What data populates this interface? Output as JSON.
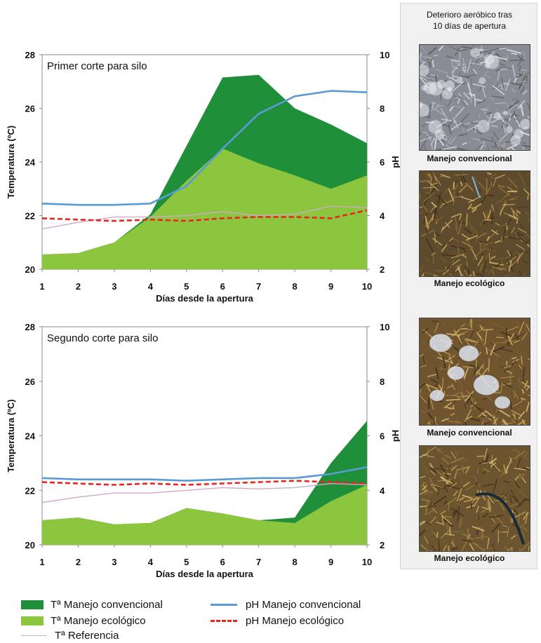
{
  "chart_data": [
    {
      "type": "area",
      "title": "Primer corte para silo",
      "xlabel": "Días desde la apertura",
      "ylabel": "Temperatura (ºC)",
      "y2label": "pH",
      "x": [
        1,
        2,
        3,
        4,
        5,
        6,
        7,
        8,
        9,
        10
      ],
      "xlim": [
        1,
        10
      ],
      "ylim": [
        20,
        28
      ],
      "y2lim": [
        2,
        10
      ],
      "yticks": [
        20,
        22,
        24,
        26,
        28
      ],
      "y2ticks": [
        2,
        4,
        6,
        8,
        10
      ],
      "grid": false,
      "series": [
        {
          "name": "Tª Manejo convencional",
          "axis": "left",
          "kind": "area",
          "color": "#1f8f3a",
          "values": [
            20.55,
            20.6,
            21.0,
            22.05,
            24.6,
            27.15,
            27.25,
            26.0,
            25.4,
            24.7
          ]
        },
        {
          "name": "Tª Manejo ecológico",
          "axis": "left",
          "kind": "area",
          "color": "#8cc63f",
          "values": [
            20.55,
            20.6,
            21.0,
            21.95,
            23.3,
            24.5,
            23.95,
            23.5,
            23.0,
            23.5
          ]
        },
        {
          "name": "Tª Referencia",
          "axis": "left",
          "kind": "line",
          "color": "#cfa9c6",
          "values": [
            21.5,
            21.75,
            21.95,
            21.95,
            22.0,
            22.15,
            22.0,
            22.05,
            22.35,
            22.3
          ]
        },
        {
          "name": "pH Manejo convencional",
          "axis": "right",
          "kind": "line",
          "color": "#5b9bd5",
          "values": [
            4.45,
            4.4,
            4.4,
            4.45,
            5.1,
            6.5,
            7.8,
            8.45,
            8.65,
            8.6
          ]
        },
        {
          "name": "pH Manejo ecológico",
          "axis": "right",
          "kind": "dashed",
          "color": "#e8251f",
          "values": [
            3.9,
            3.85,
            3.8,
            3.85,
            3.8,
            3.9,
            3.95,
            3.95,
            3.9,
            4.2
          ]
        }
      ]
    },
    {
      "type": "area",
      "title": "Segundo corte para silo",
      "xlabel": "Días desde la apertura",
      "ylabel": "Temperatura (ºC)",
      "y2label": "pH",
      "x": [
        1,
        2,
        3,
        4,
        5,
        6,
        7,
        8,
        9,
        10
      ],
      "xlim": [
        1,
        10
      ],
      "ylim": [
        20,
        28
      ],
      "y2lim": [
        2,
        10
      ],
      "yticks": [
        20,
        22,
        24,
        26,
        28
      ],
      "y2ticks": [
        2,
        4,
        6,
        8,
        10
      ],
      "grid": false,
      "series": [
        {
          "name": "Tª Manejo convencional",
          "axis": "left",
          "kind": "area",
          "color": "#1f8f3a",
          "values": [
            20.9,
            21.0,
            20.75,
            20.8,
            21.35,
            21.15,
            20.9,
            21.0,
            23.0,
            24.55
          ]
        },
        {
          "name": "Tª Manejo ecológico",
          "axis": "left",
          "kind": "area",
          "color": "#8cc63f",
          "values": [
            20.9,
            21.0,
            20.75,
            20.8,
            21.35,
            21.15,
            20.9,
            20.8,
            21.6,
            22.2
          ]
        },
        {
          "name": "Tª Referencia",
          "axis": "left",
          "kind": "line",
          "color": "#cfa9c6",
          "values": [
            21.55,
            21.75,
            21.9,
            21.9,
            22.0,
            22.1,
            22.05,
            22.1,
            22.25,
            22.2
          ]
        },
        {
          "name": "pH Manejo convencional",
          "axis": "right",
          "kind": "line",
          "color": "#5b9bd5",
          "values": [
            4.45,
            4.4,
            4.4,
            4.4,
            4.35,
            4.4,
            4.45,
            4.45,
            4.6,
            4.85
          ]
        },
        {
          "name": "pH Manejo ecológico",
          "axis": "right",
          "kind": "dashed",
          "color": "#e8251f",
          "values": [
            4.3,
            4.25,
            4.2,
            4.25,
            4.2,
            4.25,
            4.3,
            4.35,
            4.3,
            4.25
          ]
        }
      ]
    }
  ],
  "legend": {
    "items": [
      {
        "label": "Tª Manejo convencional",
        "kind": "swatch",
        "color": "#1f8f3a"
      },
      {
        "label": "Tª Manejo ecológico",
        "kind": "swatch",
        "color": "#8cc63f"
      },
      {
        "label": "Tª Referencia",
        "kind": "line",
        "color": "#cfa9c6"
      },
      {
        "label": "pH Manejo convencional",
        "kind": "line",
        "color": "#5b9bd5"
      },
      {
        "label": "pH Manejo ecológico",
        "kind": "dashed",
        "color": "#e8251f"
      }
    ]
  },
  "side_panel": {
    "title_line1": "Deterioro aeróbico tras",
    "title_line2": "10 días de apertura",
    "photos": [
      {
        "caption": "Manejo convencional",
        "tone": "#8a8c95",
        "mold": "heavy"
      },
      {
        "caption": "Manejo ecológico",
        "tone": "#5e4a2c",
        "mold": "none"
      },
      {
        "caption": "Manejo convencional",
        "tone": "#6e5530",
        "mold": "patches"
      },
      {
        "caption": "Manejo ecológico",
        "tone": "#6b5530",
        "mold": "none"
      }
    ]
  }
}
